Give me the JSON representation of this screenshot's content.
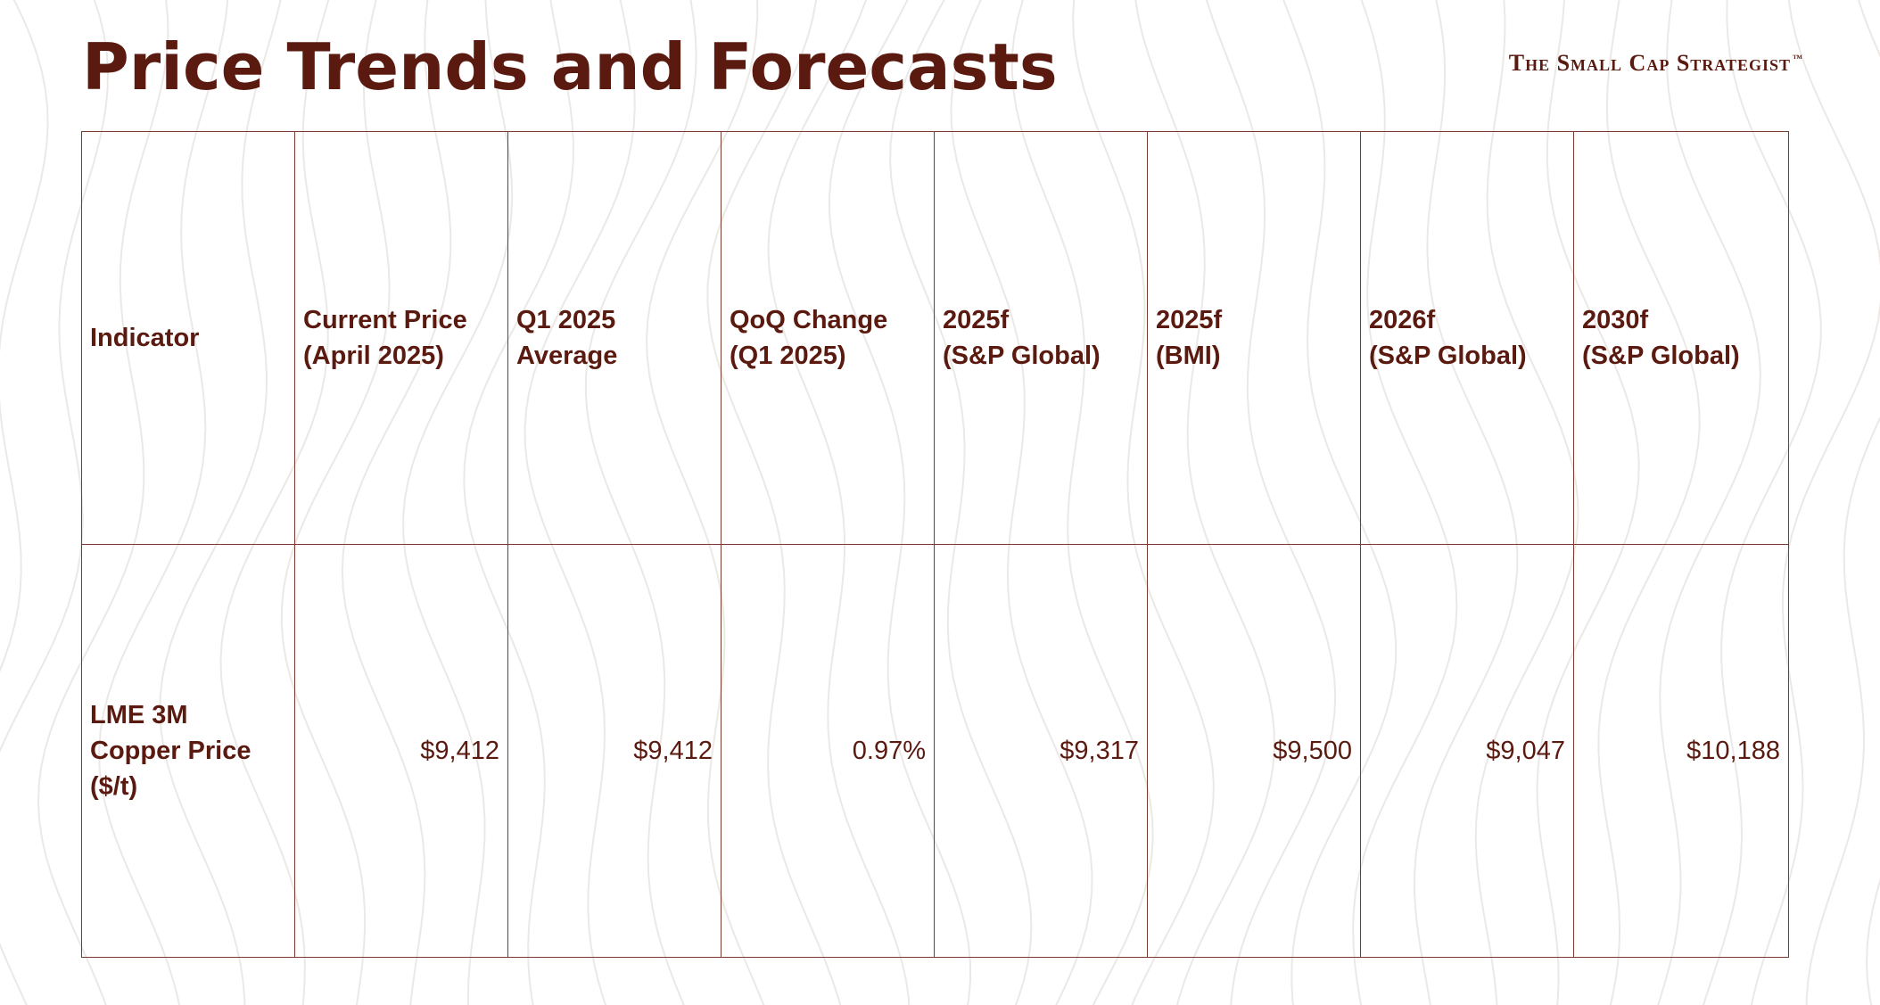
{
  "page": {
    "title": "Price Trends and Forecasts",
    "brand": "The Small Cap Strategist",
    "brand_mark": "™"
  },
  "table": {
    "headers": [
      {
        "line1": "Indicator",
        "line2": ""
      },
      {
        "line1": "Current Price",
        "line2": "(April 2025)"
      },
      {
        "line1": "Q1 2025",
        "line2": "Average"
      },
      {
        "line1": "QoQ Change",
        "line2": "(Q1 2025)"
      },
      {
        "line1": "2025f",
        "line2": "(S&P Global)"
      },
      {
        "line1": "2025f",
        "line2": "(BMI)"
      },
      {
        "line1": "2026f",
        "line2": "(S&P Global)"
      },
      {
        "line1": "2030f",
        "line2": "(S&P Global)"
      }
    ],
    "rows": [
      {
        "indicator": [
          "LME 3M",
          "Copper Price",
          "($/t)"
        ],
        "values": [
          "$9,412",
          "$9,412",
          "0.97%",
          "$9,317",
          "$9,500",
          "$9,047",
          "$10,188"
        ]
      }
    ]
  },
  "colors": {
    "text": "#5a1a10",
    "border": "#7a3a30",
    "background": "#ffffff",
    "pattern": "#ece8e6"
  }
}
